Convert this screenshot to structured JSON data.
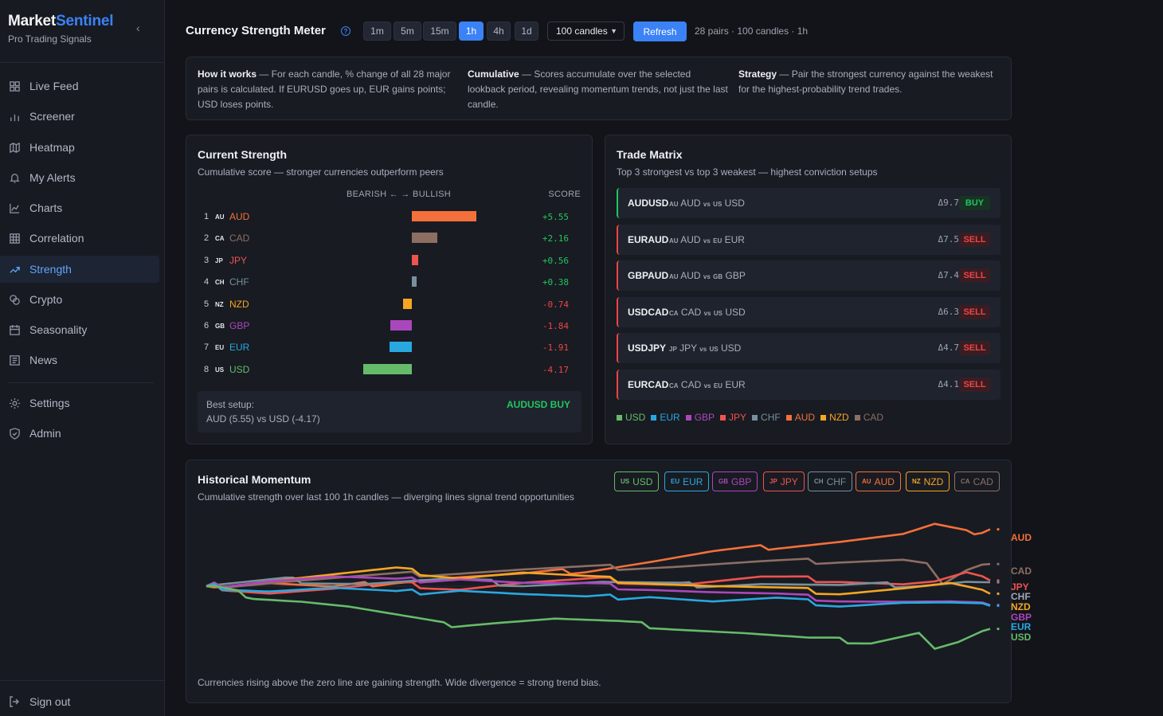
{
  "brand": {
    "name_main": "Market",
    "name_accent": "Sentinel",
    "subtitle": "Pro Trading Signals"
  },
  "sidebar": {
    "items": [
      {
        "label": "Live Feed",
        "icon": "grid-icon"
      },
      {
        "label": "Screener",
        "icon": "bar-chart-icon"
      },
      {
        "label": "Heatmap",
        "icon": "map-icon"
      },
      {
        "label": "My Alerts",
        "icon": "bell-icon"
      },
      {
        "label": "Charts",
        "icon": "line-chart-icon"
      },
      {
        "label": "Correlation",
        "icon": "table-icon"
      },
      {
        "label": "Strength",
        "icon": "trending-up-icon",
        "active": true
      },
      {
        "label": "Crypto",
        "icon": "coins-icon"
      },
      {
        "label": "Seasonality",
        "icon": "calendar-icon"
      },
      {
        "label": "News",
        "icon": "newspaper-icon"
      }
    ],
    "secondary": [
      {
        "label": "Settings",
        "icon": "gear-icon"
      },
      {
        "label": "Admin",
        "icon": "shield-icon"
      }
    ],
    "signout": "Sign out"
  },
  "header": {
    "title": "Currency Strength Meter",
    "timeframes": [
      "1m",
      "5m",
      "15m",
      "1h",
      "4h",
      "1d"
    ],
    "active_timeframe": "1h",
    "candles_select": "100 candles",
    "refresh_label": "Refresh",
    "meta": "28 pairs · 100 candles · 1h"
  },
  "info": {
    "how_title": "How it works",
    "how_text": " — For each candle, % change of all 28 major pairs is calculated. If EURUSD goes up, EUR gains points; USD loses points.",
    "cum_title": "Cumulative",
    "cum_text": " — Scores accumulate over the selected lookback period, revealing momentum trends, not just the last candle.",
    "strat_title": "Strategy",
    "strat_text": " — Pair the strongest currency against the weakest for the highest-probability trend trades."
  },
  "strength": {
    "title": "Current Strength",
    "subtitle": "Cumulative score — stronger currencies outperform peers",
    "col_direction": "BEARISH ← → BULLISH",
    "col_score": "SCORE",
    "rows": [
      {
        "rank": "1",
        "flag": "AU",
        "ccy": "AUD",
        "score": "+5.55",
        "value": 5.55,
        "color": "#f4703a"
      },
      {
        "rank": "2",
        "flag": "CA",
        "ccy": "CAD",
        "score": "+2.16",
        "value": 2.16,
        "color": "#8d6e63"
      },
      {
        "rank": "3",
        "flag": "JP",
        "ccy": "JPY",
        "score": "+0.56",
        "value": 0.56,
        "color": "#ef5350"
      },
      {
        "rank": "4",
        "flag": "CH",
        "ccy": "CHF",
        "score": "+0.38",
        "value": 0.38,
        "color": "#78909c"
      },
      {
        "rank": "5",
        "flag": "NZ",
        "ccy": "NZD",
        "score": "-0.74",
        "value": -0.74,
        "color": "#f5a623"
      },
      {
        "rank": "6",
        "flag": "GB",
        "ccy": "GBP",
        "score": "-1.84",
        "value": -1.84,
        "color": "#ab47bc"
      },
      {
        "rank": "7",
        "flag": "EU",
        "ccy": "EUR",
        "score": "-1.91",
        "value": -1.91,
        "color": "#29a8e0"
      },
      {
        "rank": "8",
        "flag": "US",
        "ccy": "USD",
        "score": "-4.17",
        "value": -4.17,
        "color": "#66bb6a"
      }
    ],
    "best_label": "Best setup:",
    "best_value": "AUD (5.55) vs USD (-4.17)",
    "best_tag": "AUDUSD BUY"
  },
  "matrix": {
    "title": "Trade Matrix",
    "subtitle": "Top 3 strongest vs top 3 weakest — highest conviction setups",
    "rows": [
      {
        "pair": "AUDUSD",
        "base_flag": "AU",
        "base": "AUD",
        "quote_flag": "US",
        "quote": "USD",
        "delta": "Δ9.7",
        "signal": "BUY"
      },
      {
        "pair": "EURAUD",
        "base_flag": "AU",
        "base": "AUD",
        "quote_flag": "EU",
        "quote": "EUR",
        "delta": "Δ7.5",
        "signal": "SELL"
      },
      {
        "pair": "GBPAUD",
        "base_flag": "AU",
        "base": "AUD",
        "quote_flag": "GB",
        "quote": "GBP",
        "delta": "Δ7.4",
        "signal": "SELL"
      },
      {
        "pair": "USDCAD",
        "base_flag": "CA",
        "base": "CAD",
        "quote_flag": "US",
        "quote": "USD",
        "delta": "Δ6.3",
        "signal": "SELL"
      },
      {
        "pair": "USDJPY",
        "base_flag": "JP",
        "base": "JPY",
        "quote_flag": "US",
        "quote": "USD",
        "delta": "Δ4.7",
        "signal": "SELL"
      },
      {
        "pair": "EURCAD",
        "base_flag": "CA",
        "base": "CAD",
        "quote_flag": "EU",
        "quote": "EUR",
        "delta": "Δ4.1",
        "signal": "SELL"
      }
    ],
    "vs_word": "vs",
    "legend": [
      {
        "ccy": "USD",
        "color": "#66bb6a"
      },
      {
        "ccy": "EUR",
        "color": "#29a8e0"
      },
      {
        "ccy": "GBP",
        "color": "#ab47bc"
      },
      {
        "ccy": "JPY",
        "color": "#ef5350"
      },
      {
        "ccy": "CHF",
        "color": "#78909c"
      },
      {
        "ccy": "AUD",
        "color": "#f4703a"
      },
      {
        "ccy": "NZD",
        "color": "#f5a623"
      },
      {
        "ccy": "CAD",
        "color": "#8d6e63"
      }
    ]
  },
  "momentum": {
    "title": "Historical Momentum",
    "subtitle": "Cumulative strength over last 100 1h candles — diverging lines signal trend opportunities",
    "chips": [
      {
        "flag": "US",
        "ccy": "USD",
        "color": "#66bb6a"
      },
      {
        "flag": "EU",
        "ccy": "EUR",
        "color": "#29a8e0"
      },
      {
        "flag": "GB",
        "ccy": "GBP",
        "color": "#ab47bc"
      },
      {
        "flag": "JP",
        "ccy": "JPY",
        "color": "#ef5350"
      },
      {
        "flag": "CH",
        "ccy": "CHF",
        "color": "#78909c"
      },
      {
        "flag": "AU",
        "ccy": "AUD",
        "color": "#f4703a"
      },
      {
        "flag": "NZ",
        "ccy": "NZD",
        "color": "#f5a623"
      },
      {
        "flag": "CA",
        "ccy": "CAD",
        "color": "#8d6e63"
      }
    ],
    "end_labels": [
      {
        "ccy": "AUD",
        "color": "#f4703a"
      },
      {
        "ccy": "CAD",
        "color": "#8d6e63"
      },
      {
        "ccy": "JPY",
        "color": "#ef5350"
      },
      {
        "ccy": "CHF",
        "color": "#a0a8b4"
      },
      {
        "ccy": "NZD",
        "color": "#f5a623"
      },
      {
        "ccy": "GBP",
        "color": "#ab47bc"
      },
      {
        "ccy": "EUR",
        "color": "#29a8e0"
      },
      {
        "ccy": "USD",
        "color": "#66bb6a"
      }
    ],
    "footnote": "Currencies rising above the zero line are gaining strength. Wide divergence = strong trend bias."
  },
  "chart_data": {
    "type": "line",
    "x_count": 100,
    "series": [
      {
        "name": "AUD",
        "color": "#f4703a",
        "anchors": [
          [
            0,
            0
          ],
          [
            8,
            0.3
          ],
          [
            16,
            -0.2
          ],
          [
            24,
            0.5
          ],
          [
            32,
            0.9
          ],
          [
            40,
            1.1
          ],
          [
            48,
            1.6
          ],
          [
            56,
            2.4
          ],
          [
            64,
            3.3
          ],
          [
            72,
            3.9
          ],
          [
            80,
            4.4
          ],
          [
            88,
            5.0
          ],
          [
            92,
            5.9
          ],
          [
            96,
            5.2
          ],
          [
            99,
            5.55
          ]
        ]
      },
      {
        "name": "CAD",
        "color": "#8d6e63",
        "anchors": [
          [
            0,
            0
          ],
          [
            10,
            0.5
          ],
          [
            20,
            0.9
          ],
          [
            30,
            1.3
          ],
          [
            40,
            1.6
          ],
          [
            50,
            1.8
          ],
          [
            60,
            2.0
          ],
          [
            70,
            2.3
          ],
          [
            80,
            2.5
          ],
          [
            88,
            2.6
          ],
          [
            91,
            2.2
          ],
          [
            93,
            0.1
          ],
          [
            96,
            1.4
          ],
          [
            99,
            2.16
          ]
        ]
      },
      {
        "name": "JPY",
        "color": "#ef5350",
        "anchors": [
          [
            0,
            0
          ],
          [
            8,
            -0.6
          ],
          [
            16,
            -0.3
          ],
          [
            24,
            0.2
          ],
          [
            32,
            -0.2
          ],
          [
            40,
            0.3
          ],
          [
            50,
            0.6
          ],
          [
            60,
            0.2
          ],
          [
            70,
            0.8
          ],
          [
            80,
            0.6
          ],
          [
            88,
            0.2
          ],
          [
            92,
            0.4
          ],
          [
            96,
            1.2
          ],
          [
            99,
            0.56
          ]
        ]
      },
      {
        "name": "CHF",
        "color": "#78909c",
        "anchors": [
          [
            0,
            0
          ],
          [
            10,
            0.6
          ],
          [
            20,
            0.3
          ],
          [
            30,
            0.6
          ],
          [
            40,
            0.2
          ],
          [
            50,
            0.4
          ],
          [
            60,
            0.1
          ],
          [
            70,
            0.3
          ],
          [
            80,
            0.0
          ],
          [
            90,
            0.2
          ],
          [
            96,
            0.5
          ],
          [
            99,
            0.38
          ]
        ]
      },
      {
        "name": "NZD",
        "color": "#f5a623",
        "anchors": [
          [
            0,
            0
          ],
          [
            8,
            0.6
          ],
          [
            16,
            1.1
          ],
          [
            24,
            1.6
          ],
          [
            32,
            0.9
          ],
          [
            40,
            1.3
          ],
          [
            48,
            0.8
          ],
          [
            56,
            0.4
          ],
          [
            64,
            0.0
          ],
          [
            72,
            -0.3
          ],
          [
            80,
            -0.6
          ],
          [
            88,
            -0.2
          ],
          [
            94,
            0.2
          ],
          [
            99,
            -0.74
          ]
        ]
      },
      {
        "name": "GBP",
        "color": "#ab47bc",
        "anchors": [
          [
            0,
            0
          ],
          [
            8,
            0.6
          ],
          [
            16,
            0.9
          ],
          [
            24,
            0.5
          ],
          [
            32,
            0.8
          ],
          [
            40,
            0.3
          ],
          [
            48,
            0.1
          ],
          [
            56,
            -0.2
          ],
          [
            64,
            -0.6
          ],
          [
            72,
            -0.9
          ],
          [
            80,
            -1.3
          ],
          [
            88,
            -1.5
          ],
          [
            94,
            -1.6
          ],
          [
            99,
            -1.84
          ]
        ]
      },
      {
        "name": "EUR",
        "color": "#29a8e0",
        "anchors": [
          [
            0,
            0
          ],
          [
            8,
            -0.4
          ],
          [
            16,
            -0.2
          ],
          [
            24,
            -0.7
          ],
          [
            32,
            -0.3
          ],
          [
            40,
            -0.8
          ],
          [
            48,
            -1.2
          ],
          [
            56,
            -0.9
          ],
          [
            64,
            -1.5
          ],
          [
            72,
            -1.3
          ],
          [
            80,
            -1.8
          ],
          [
            88,
            -1.6
          ],
          [
            94,
            -1.7
          ],
          [
            99,
            -1.91
          ]
        ]
      },
      {
        "name": "USD",
        "color": "#66bb6a",
        "anchors": [
          [
            0,
            0
          ],
          [
            6,
            -1.0
          ],
          [
            12,
            -1.4
          ],
          [
            18,
            -2.0
          ],
          [
            24,
            -2.9
          ],
          [
            30,
            -3.8
          ],
          [
            36,
            -3.5
          ],
          [
            44,
            -3.2
          ],
          [
            52,
            -3.6
          ],
          [
            60,
            -4.1
          ],
          [
            68,
            -4.6
          ],
          [
            76,
            -5.2
          ],
          [
            84,
            -5.4
          ],
          [
            88,
            -4.8
          ],
          [
            90,
            -4.5
          ],
          [
            92,
            -6.1
          ],
          [
            95,
            -5.5
          ],
          [
            99,
            -4.17
          ]
        ]
      }
    ],
    "ylim": [
      -7,
      7
    ]
  }
}
